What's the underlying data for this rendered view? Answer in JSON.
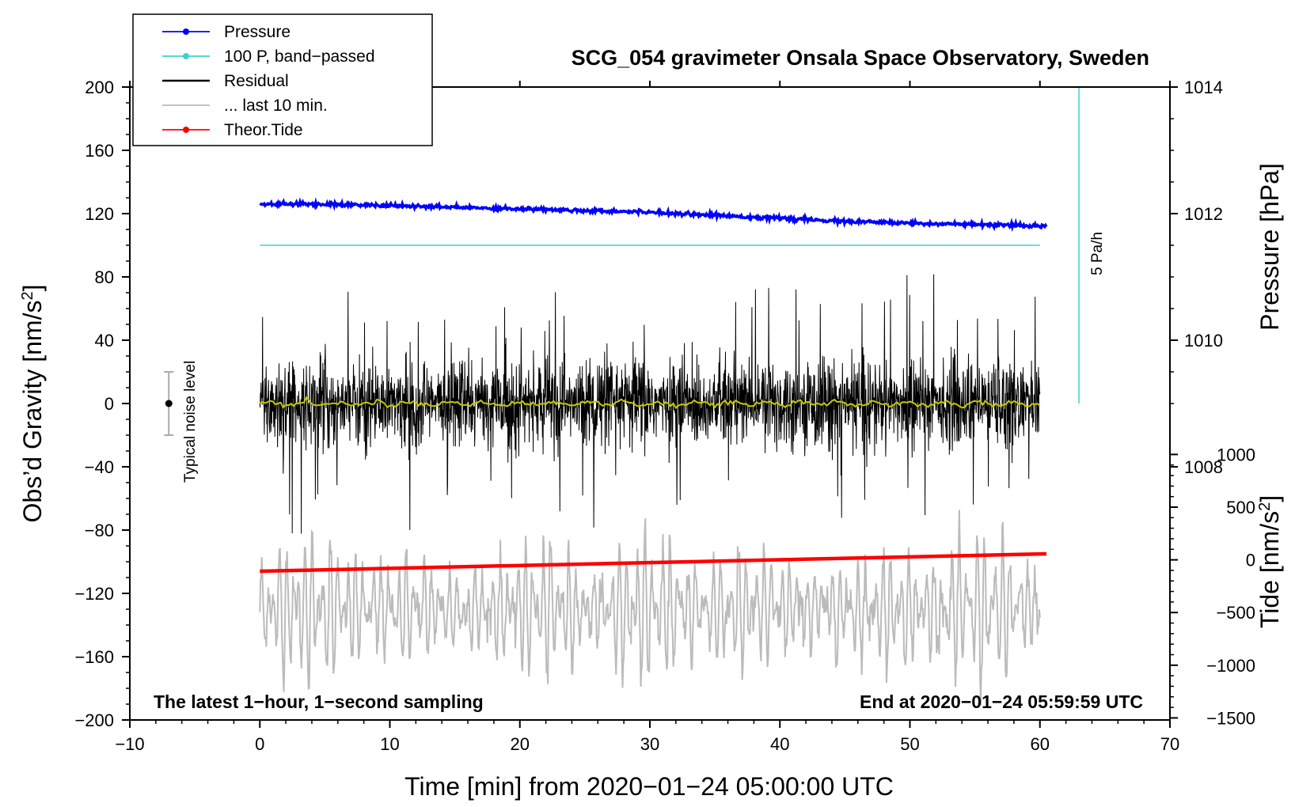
{
  "chart_data": {
    "type": "line",
    "title": "SCG_054 gravimeter Onsala Space Observatory, Sweden",
    "xlabel": "Time [min] from 2020−01−24 05:00:00 UTC",
    "ylabel_left_main": "Obs’d Gravity [nm/s",
    "ylabel_left_sup": "2",
    "ylabel_left_end": "]",
    "ylabel_right_pressure": "Pressure [hPa]",
    "ylabel_right_tide_main": "Tide [nm/s",
    "ylabel_right_tide_sup": "2",
    "ylabel_right_tide_end": "]",
    "xlim": [
      -10,
      70
    ],
    "ylim": [
      -200,
      200
    ],
    "x_ticks": [
      "−10",
      "0",
      "10",
      "20",
      "30",
      "40",
      "50",
      "60",
      "70"
    ],
    "y_ticks": [
      "200",
      "160",
      "120",
      "80",
      "40",
      "0",
      "−40",
      "−80",
      "−120",
      "−160",
      "−200"
    ],
    "pressure_ticks": [
      "1014",
      "1012",
      "1010",
      "1008"
    ],
    "tide_ticks": [
      "1000",
      "500",
      "0",
      "−500",
      "−1000",
      "−1500"
    ],
    "note_left": "The latest 1−hour, 1−second sampling",
    "note_right": "End at 2020−01−24 05:59:59 UTC",
    "noise_label": "Typical noise level",
    "noise_bar": {
      "center": 0,
      "half_range": 20,
      "x": -7
    },
    "rate_label": "5 Pa/h",
    "legend": [
      {
        "label": "Pressure",
        "color": "#0000ff",
        "marker": true
      },
      {
        "label": "100 P, band−passed",
        "color": "#40d0d0",
        "marker": true
      },
      {
        "label": "Residual",
        "color": "#000000",
        "marker": false
      },
      {
        "label": "... last 10 min.",
        "color": "#bbbbbb",
        "marker": false
      },
      {
        "label": "Theor.Tide",
        "color": "#ff0000",
        "marker": true
      }
    ],
    "series": [
      {
        "name": "Pressure",
        "color": "#0000ff",
        "x": [
          0,
          5,
          10,
          15,
          20,
          25,
          30,
          35,
          40,
          45,
          50,
          55,
          60.5
        ],
        "y": [
          126,
          126,
          125,
          124,
          123,
          122,
          121,
          119,
          117,
          115,
          114,
          113,
          112
        ]
      },
      {
        "name": "100 P, band−passed",
        "color": "#40d0d0",
        "x": [
          0,
          60
        ],
        "y": [
          100,
          100
        ]
      },
      {
        "name": "Residual",
        "color": "#000000",
        "x_range": [
          0,
          60
        ],
        "amplitude_typical": 30,
        "amplitude_max": 85
      },
      {
        "name": "Residual smoothed",
        "color": "#c8c800",
        "x": [
          0,
          60
        ],
        "y": [
          0,
          0
        ]
      },
      {
        "name": "... last 10 min.",
        "color": "#bbbbbb",
        "x_range": [
          0,
          60
        ],
        "center": -130,
        "amplitude_typical": 40,
        "amplitude_max": 110
      },
      {
        "name": "Theor.Tide",
        "color": "#ff0000",
        "x": [
          0,
          60.5
        ],
        "y": [
          -106,
          -95
        ]
      }
    ],
    "rate_line": {
      "x": 63,
      "y_from": 200,
      "y_to": 0,
      "color": "#40d0d0"
    },
    "colors": {
      "pressure": "#0000ff",
      "bandpass": "#40d0d0",
      "residual": "#000000",
      "smooth": "#c8c800",
      "last10": "#bbbbbb",
      "tide": "#ff0000",
      "noise": "#aaaaaa"
    }
  }
}
